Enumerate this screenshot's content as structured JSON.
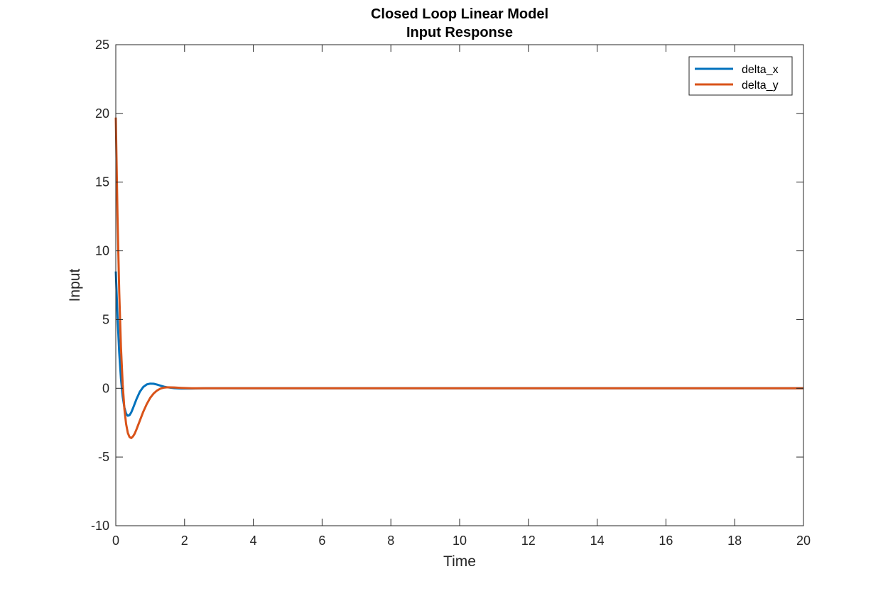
{
  "chart_data": {
    "type": "line",
    "title": "Closed Loop Linear Model",
    "subtitle": "Input Response",
    "xlabel": "Time",
    "ylabel": "Input",
    "xlim": [
      0,
      20
    ],
    "ylim": [
      -10,
      25
    ],
    "xticks": [
      "0",
      "2",
      "4",
      "6",
      "8",
      "10",
      "12",
      "14",
      "16",
      "18",
      "20"
    ],
    "yticks": [
      "-10",
      "-5",
      "0",
      "5",
      "10",
      "15",
      "20",
      "25"
    ],
    "grid": false,
    "legend_position": "top-right",
    "series": [
      {
        "name": "delta_x",
        "color": "#0072BD",
        "x": [
          0,
          0.05,
          0.1,
          0.15,
          0.2,
          0.25,
          0.3,
          0.35,
          0.4,
          0.45,
          0.5,
          0.6,
          0.7,
          0.8,
          0.9,
          1.0,
          1.1,
          1.2,
          1.3,
          1.4,
          1.5,
          1.7,
          1.9,
          2.2,
          2.6,
          3.0,
          20
        ],
        "y": [
          8.5,
          5.2,
          2.6,
          0.7,
          -0.6,
          -1.4,
          -1.85,
          -2.0,
          -1.95,
          -1.75,
          -1.45,
          -0.8,
          -0.25,
          0.1,
          0.28,
          0.34,
          0.33,
          0.27,
          0.19,
          0.12,
          0.07,
          0.01,
          -0.02,
          -0.02,
          0.0,
          0.0,
          0.0
        ]
      },
      {
        "name": "delta_y",
        "color": "#D95319",
        "x": [
          0,
          0.05,
          0.1,
          0.15,
          0.2,
          0.25,
          0.3,
          0.35,
          0.4,
          0.45,
          0.5,
          0.55,
          0.6,
          0.7,
          0.8,
          0.9,
          1.0,
          1.1,
          1.2,
          1.3,
          1.4,
          1.5,
          1.7,
          1.9,
          2.2,
          2.6,
          3.0,
          20
        ],
        "y": [
          19.7,
          12.5,
          7.0,
          3.0,
          0.3,
          -1.5,
          -2.6,
          -3.25,
          -3.55,
          -3.62,
          -3.5,
          -3.3,
          -3.0,
          -2.35,
          -1.7,
          -1.15,
          -0.7,
          -0.38,
          -0.16,
          -0.02,
          0.05,
          0.07,
          0.06,
          0.03,
          0.0,
          0.0,
          0.0,
          0.0
        ]
      }
    ]
  }
}
